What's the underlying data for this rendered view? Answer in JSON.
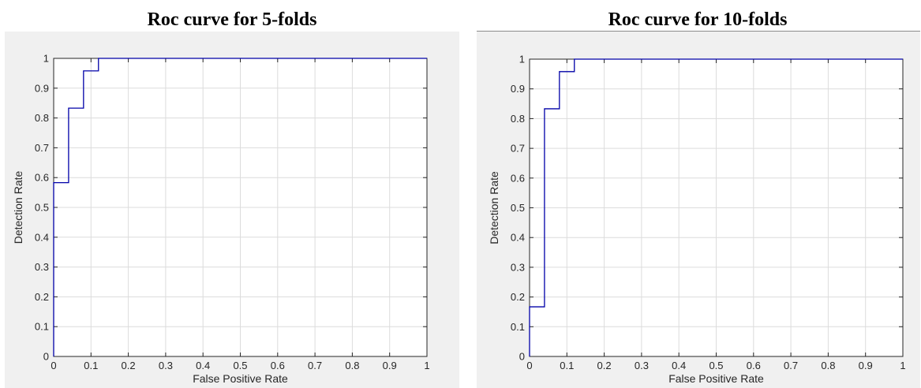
{
  "chart_data": [
    {
      "type": "line",
      "title": "Roc curve for 5-folds",
      "xlabel": "False Positive Rate",
      "ylabel": "Detection Rate",
      "xlim": [
        0,
        1
      ],
      "ylim": [
        0,
        1
      ],
      "xticks": [
        "0",
        "0.1",
        "0.2",
        "0.3",
        "0.4",
        "0.5",
        "0.6",
        "0.7",
        "0.8",
        "0.9",
        "1"
      ],
      "yticks": [
        "0",
        "0.1",
        "0.2",
        "0.3",
        "0.4",
        "0.5",
        "0.6",
        "0.7",
        "0.8",
        "0.9",
        "1"
      ],
      "grid": true,
      "series": [
        {
          "color": "#0000a8",
          "x": [
            0,
            0,
            0.04,
            0.04,
            0.08,
            0.08,
            0.12,
            0.12,
            1
          ],
          "y": [
            0,
            0.583,
            0.583,
            0.833,
            0.833,
            0.958,
            0.958,
            1,
            1
          ]
        }
      ]
    },
    {
      "type": "line",
      "title": "Roc curve for 10-folds",
      "xlabel": "False Positive Rate",
      "ylabel": "Detection Rate",
      "xlim": [
        0,
        1
      ],
      "ylim": [
        0,
        1
      ],
      "xticks": [
        "0",
        "0.1",
        "0.2",
        "0.3",
        "0.4",
        "0.5",
        "0.6",
        "0.7",
        "0.8",
        "0.9",
        "1"
      ],
      "yticks": [
        "0",
        "0.1",
        "0.2",
        "0.3",
        "0.4",
        "0.5",
        "0.6",
        "0.7",
        "0.8",
        "0.9",
        "1"
      ],
      "grid": true,
      "series": [
        {
          "color": "#0000a8",
          "x": [
            0,
            0,
            0.04,
            0.04,
            0.08,
            0.08,
            0.12,
            0.12,
            1
          ],
          "y": [
            0,
            0.167,
            0.167,
            0.833,
            0.833,
            0.958,
            0.958,
            1,
            1
          ]
        }
      ]
    }
  ]
}
